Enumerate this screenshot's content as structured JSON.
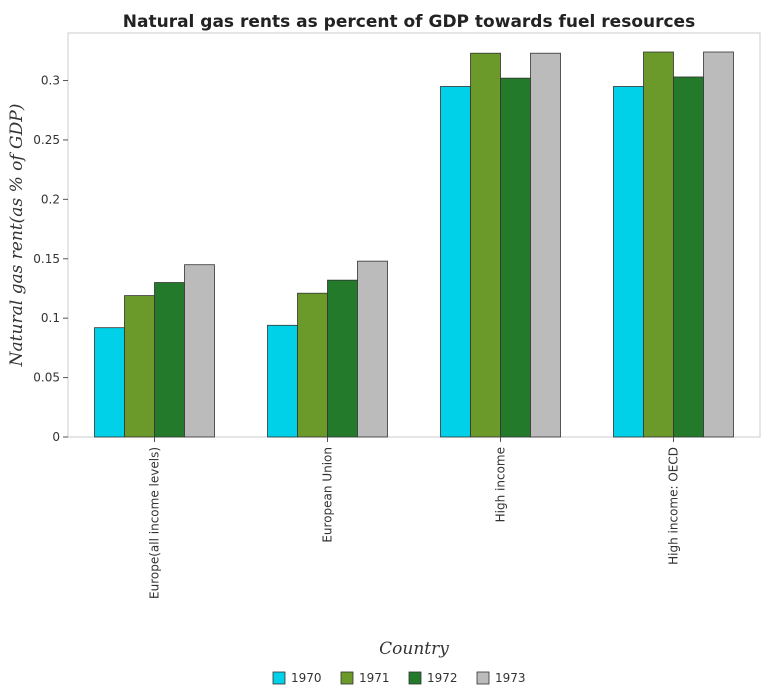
{
  "chart_data": {
    "type": "bar",
    "title": "Natural gas rents as percent of GDP towards fuel resources",
    "xlabel": "Country",
    "ylabel": "Natural gas rent(as % of GDP)",
    "categories": [
      "Europe(all income levels)",
      "European Union",
      "High income",
      "High income: OECD"
    ],
    "series": [
      {
        "name": "1970",
        "color": "#00d0e8",
        "values": [
          0.092,
          0.094,
          0.295,
          0.295
        ]
      },
      {
        "name": "1971",
        "color": "#6b9a2a",
        "values": [
          0.119,
          0.121,
          0.323,
          0.324
        ]
      },
      {
        "name": "1972",
        "color": "#227a2a",
        "values": [
          0.13,
          0.132,
          0.302,
          0.303
        ]
      },
      {
        "name": "1973",
        "color": "#bbbbbb",
        "values": [
          0.145,
          0.148,
          0.323,
          0.324
        ]
      }
    ],
    "ylim": [
      0,
      0.34
    ],
    "yticks": [
      0,
      0.05,
      0.1,
      0.15,
      0.2,
      0.25,
      0.3
    ],
    "ytick_labels": [
      "0",
      "0.05",
      "0.1",
      "0.15",
      "0.2",
      "0.25",
      "0.3"
    ],
    "grid": false,
    "legend_position": "bottom-center"
  }
}
